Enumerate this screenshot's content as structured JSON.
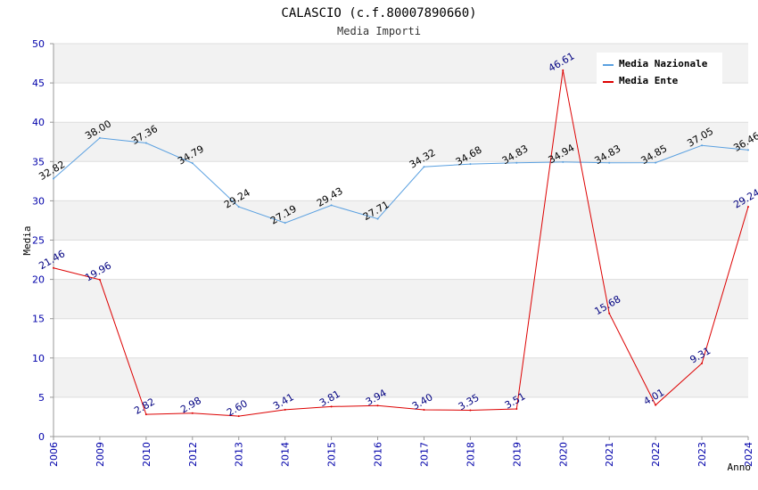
{
  "chart_data": {
    "type": "line",
    "title": "CALASCIO (c.f.80007890660)",
    "subtitle": "Media Importi",
    "xlabel": "Anno",
    "ylabel": "Media",
    "ylim": [
      0,
      50
    ],
    "yticks": [
      0,
      5,
      10,
      15,
      20,
      25,
      30,
      35,
      40,
      45,
      50
    ],
    "categories": [
      "2006",
      "2009",
      "2010",
      "2012",
      "2013",
      "2014",
      "2015",
      "2016",
      "2017",
      "2018",
      "2019",
      "2020",
      "2021",
      "2022",
      "2023",
      "2024"
    ],
    "grid": true,
    "legend_position": "top-right",
    "series": [
      {
        "name": "Media Nazionale",
        "color": "#5aa0e0",
        "values": [
          32.82,
          38.0,
          37.36,
          34.79,
          29.24,
          27.19,
          29.43,
          27.71,
          34.32,
          34.68,
          34.83,
          34.94,
          34.83,
          34.85,
          37.05,
          36.46
        ],
        "labels": [
          "32.82",
          "38.00",
          "37.36",
          "34.79",
          "29.24",
          "27.19",
          "29.43",
          "27.71",
          "34.32",
          "34.68",
          "34.83",
          "34.94",
          "34.83",
          "34.85",
          "37.05",
          "36.46"
        ]
      },
      {
        "name": "Media Ente",
        "color": "#dd0000",
        "values": [
          21.46,
          19.96,
          2.82,
          2.98,
          2.6,
          3.41,
          3.81,
          3.94,
          3.4,
          3.35,
          3.51,
          46.61,
          15.68,
          4.01,
          9.31,
          29.24
        ],
        "labels": [
          "21.46",
          "19.96",
          "2.82",
          "2.98",
          "2.60",
          "3.41",
          "3.81",
          "3.94",
          "3.40",
          "3.35",
          "3.51",
          "46.61",
          "15.68",
          "4.01",
          "9.31",
          "29.24"
        ]
      }
    ]
  }
}
